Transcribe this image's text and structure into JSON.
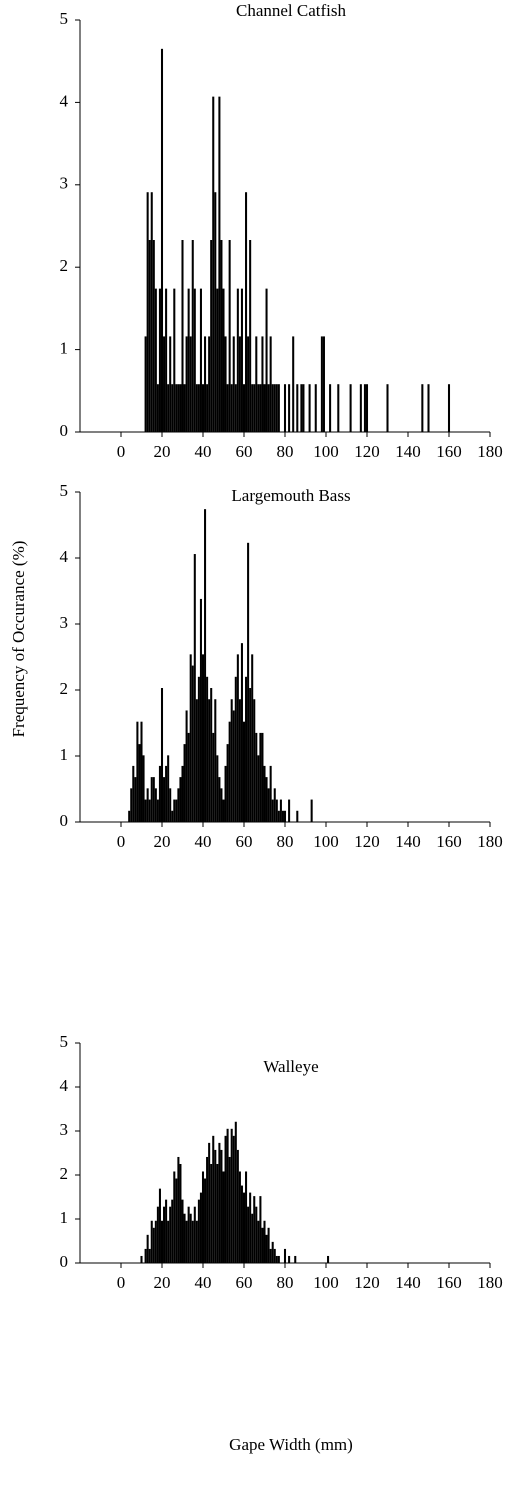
{
  "chart_data": [
    {
      "type": "bar",
      "title": "Channel Catfish",
      "color": "#000000",
      "x": [
        12,
        13,
        14,
        15,
        16,
        17,
        18,
        19,
        20,
        21,
        22,
        23,
        24,
        25,
        26,
        27,
        28,
        29,
        30,
        31,
        32,
        33,
        34,
        35,
        36,
        37,
        38,
        39,
        40,
        41,
        42,
        43,
        44,
        45,
        46,
        47,
        48,
        49,
        50,
        51,
        52,
        53,
        54,
        55,
        56,
        57,
        58,
        59,
        60,
        61,
        62,
        63,
        64,
        65,
        66,
        67,
        68,
        69,
        70,
        71,
        72,
        73,
        74,
        75,
        76,
        77,
        80,
        82,
        84,
        86,
        88,
        89,
        92,
        95,
        98,
        99,
        102,
        106,
        112,
        117,
        119,
        120,
        130,
        147,
        150,
        160
      ],
      "values": [
        1.16,
        2.91,
        2.33,
        2.91,
        2.33,
        1.74,
        0.58,
        1.74,
        4.65,
        1.16,
        1.74,
        0.58,
        1.16,
        0.58,
        1.74,
        0.58,
        0.58,
        0.58,
        2.33,
        0.58,
        1.16,
        1.74,
        1.16,
        2.33,
        1.74,
        0.58,
        0.58,
        1.74,
        0.58,
        1.16,
        0.58,
        1.16,
        2.33,
        4.07,
        2.91,
        1.74,
        4.07,
        2.33,
        1.74,
        1.16,
        0.58,
        2.33,
        0.58,
        1.16,
        0.58,
        1.74,
        1.16,
        1.74,
        0.58,
        2.91,
        1.16,
        2.33,
        0.58,
        0.58,
        1.16,
        0.58,
        0.58,
        1.16,
        0.58,
        1.74,
        0.58,
        1.16,
        0.58,
        0.58,
        0.58,
        0.58,
        0.58,
        0.58,
        1.16,
        0.58,
        0.58,
        0.58,
        0.58,
        0.58,
        1.16,
        1.16,
        0.58,
        0.58,
        0.58,
        0.58,
        0.58,
        0.58,
        0.58,
        0.58,
        0.58,
        0.58
      ],
      "xlim": [
        -20,
        180
      ],
      "xticks": [
        0,
        20,
        40,
        60,
        80,
        100,
        120,
        140,
        160,
        180
      ],
      "ylim": [
        0,
        5
      ],
      "yticks": [
        0,
        1,
        2,
        3,
        4,
        5
      ]
    },
    {
      "type": "bar",
      "title": "Largemouth Bass",
      "color": "#000000",
      "ylabel": "Frequency of Occurance (%)",
      "x": [
        4,
        5,
        6,
        7,
        8,
        9,
        10,
        11,
        12,
        13,
        14,
        15,
        16,
        17,
        18,
        19,
        20,
        21,
        22,
        23,
        24,
        25,
        26,
        27,
        28,
        29,
        30,
        31,
        32,
        33,
        34,
        35,
        36,
        37,
        38,
        39,
        40,
        41,
        42,
        43,
        44,
        45,
        46,
        47,
        48,
        49,
        50,
        51,
        52,
        53,
        54,
        55,
        56,
        57,
        58,
        59,
        60,
        61,
        62,
        63,
        64,
        65,
        66,
        67,
        68,
        69,
        70,
        71,
        72,
        73,
        74,
        75,
        76,
        77,
        78,
        79,
        80,
        82,
        86,
        93
      ],
      "values": [
        0.17,
        0.51,
        0.85,
        0.68,
        1.52,
        1.18,
        1.52,
        1.01,
        0.34,
        0.51,
        0.34,
        0.68,
        0.68,
        0.51,
        0.34,
        0.85,
        2.03,
        0.68,
        0.85,
        1.01,
        0.51,
        0.17,
        0.34,
        0.34,
        0.51,
        0.68,
        0.85,
        1.18,
        1.69,
        1.35,
        2.54,
        2.37,
        4.06,
        1.86,
        2.2,
        3.38,
        2.54,
        4.74,
        2.2,
        1.86,
        2.03,
        1.35,
        1.86,
        1.01,
        0.68,
        0.51,
        0.34,
        0.85,
        1.18,
        1.52,
        1.86,
        1.69,
        2.2,
        2.54,
        1.86,
        2.71,
        1.52,
        2.2,
        4.23,
        2.03,
        2.54,
        1.86,
        1.35,
        1.01,
        1.35,
        1.35,
        0.85,
        0.68,
        0.51,
        0.85,
        0.34,
        0.51,
        0.34,
        0.17,
        0.34,
        0.17,
        0.17,
        0.34,
        0.17,
        0.34
      ],
      "xlim": [
        -20,
        180
      ],
      "xticks": [
        0,
        20,
        40,
        60,
        80,
        100,
        120,
        140,
        160,
        180
      ],
      "ylim": [
        0,
        5
      ],
      "yticks": [
        0,
        1,
        2,
        3,
        4,
        5
      ]
    },
    {
      "type": "bar",
      "title": "Walleye",
      "color": "#000000",
      "xlabel": "Gape Width (mm)",
      "x": [
        10,
        12,
        13,
        14,
        15,
        16,
        17,
        18,
        19,
        20,
        21,
        22,
        23,
        24,
        25,
        26,
        27,
        28,
        29,
        30,
        31,
        32,
        33,
        34,
        35,
        36,
        37,
        38,
        39,
        40,
        41,
        42,
        43,
        44,
        45,
        46,
        47,
        48,
        49,
        50,
        51,
        52,
        53,
        54,
        55,
        56,
        57,
        58,
        59,
        60,
        61,
        62,
        63,
        64,
        65,
        66,
        67,
        68,
        69,
        70,
        71,
        72,
        73,
        74,
        75,
        76,
        77,
        80,
        82,
        85,
        101
      ],
      "values": [
        0.16,
        0.32,
        0.64,
        0.32,
        0.96,
        0.8,
        0.96,
        1.28,
        1.69,
        0.96,
        1.28,
        1.44,
        0.96,
        1.28,
        1.44,
        2.08,
        1.92,
        2.41,
        2.25,
        1.44,
        1.12,
        0.96,
        1.28,
        1.12,
        0.96,
        1.28,
        0.96,
        1.44,
        1.6,
        2.08,
        1.92,
        2.41,
        2.73,
        2.25,
        2.89,
        2.57,
        2.25,
        2.73,
        2.57,
        2.08,
        2.89,
        3.05,
        2.41,
        3.05,
        2.89,
        3.21,
        2.57,
        2.08,
        1.76,
        1.6,
        2.08,
        1.28,
        1.6,
        1.12,
        1.52,
        1.28,
        0.96,
        1.52,
        0.8,
        0.96,
        0.64,
        0.8,
        0.32,
        0.48,
        0.32,
        0.16,
        0.16,
        0.32,
        0.16,
        0.16,
        0.16
      ],
      "xlim": [
        -20,
        180
      ],
      "xticks": [
        0,
        20,
        40,
        60,
        80,
        100,
        120,
        140,
        160,
        180
      ],
      "ylim": [
        0,
        5
      ],
      "yticks": [
        0,
        1,
        2,
        3,
        4,
        5
      ]
    }
  ]
}
